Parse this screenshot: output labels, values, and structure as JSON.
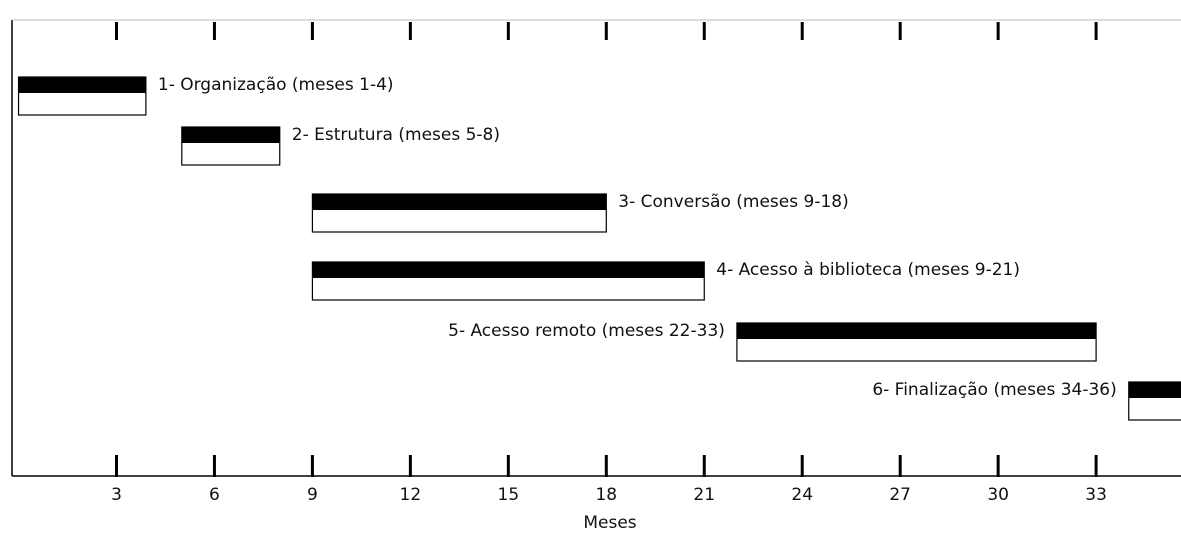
{
  "chart_data": {
    "type": "gantt",
    "x_label": "Meses",
    "xlim": [
      -0.2,
      35.6
    ],
    "xticks": [
      3,
      6,
      9,
      12,
      15,
      18,
      21,
      24,
      27,
      30,
      33
    ],
    "color": "#000000",
    "tasks": [
      {
        "label": "1- Organização (meses 1-4)",
        "start": 0,
        "end": 3.9
      },
      {
        "label": "2- Estrutura (meses 5-8)",
        "start": 5,
        "end": 8
      },
      {
        "label": "3- Conversão (meses 9-18)",
        "start": 9,
        "end": 18
      },
      {
        "label": "4- Acesso à biblioteca (meses 9-21)",
        "start": 9,
        "end": 21
      },
      {
        "label": "5- Acesso remoto (meses 22-33)",
        "start": 22,
        "end": 33
      },
      {
        "label": "6- Finalização (meses 34-36)",
        "start": 34,
        "end": 36
      }
    ]
  }
}
